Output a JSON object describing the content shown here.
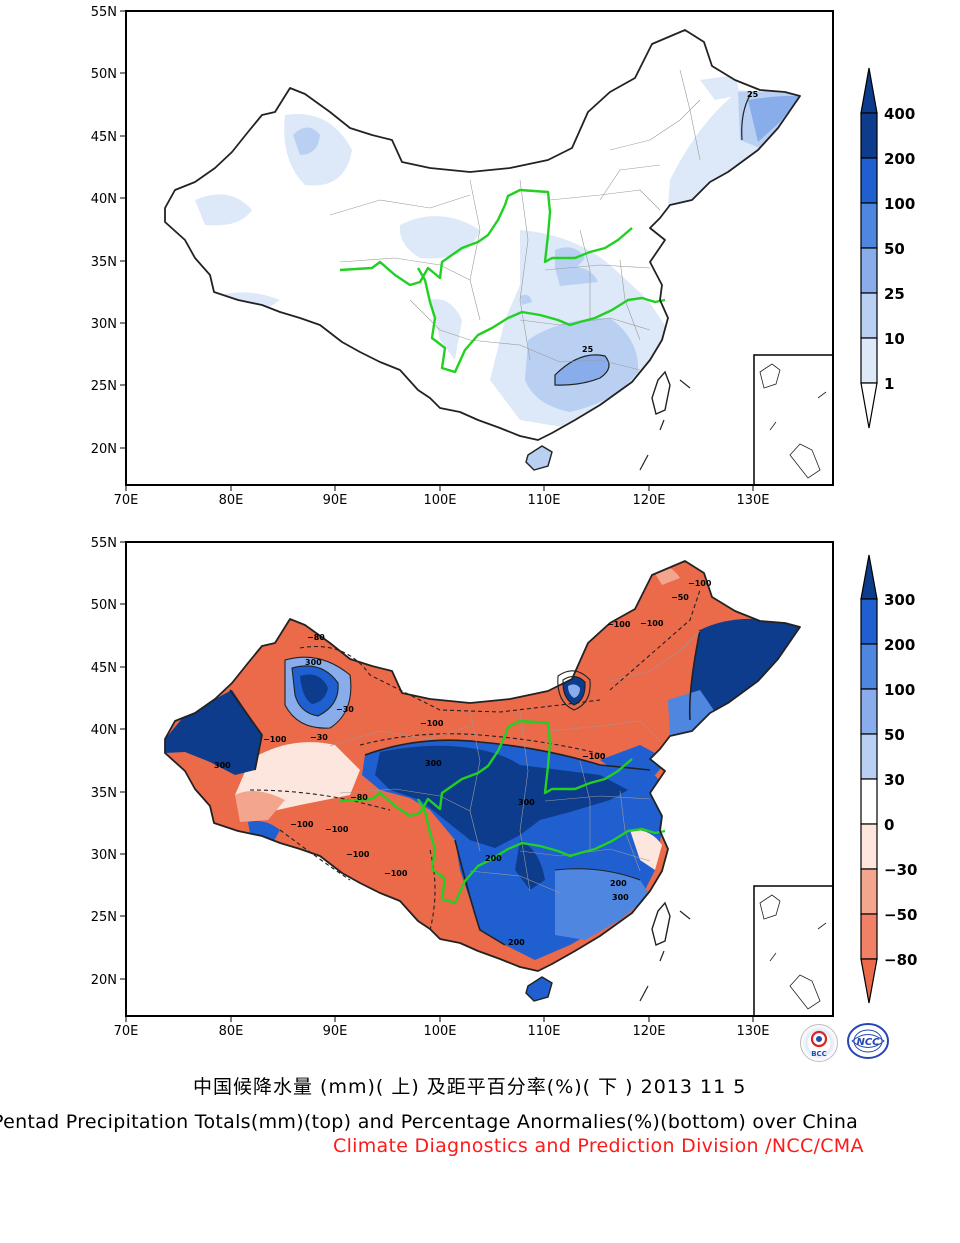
{
  "colors": {
    "blue_scale": [
      "#ffffff",
      "#dde8f8",
      "#b9d0f2",
      "#88adea",
      "#4f86e0",
      "#1f5fd0",
      "#0d3c8c"
    ],
    "red_scale": [
      "#ea6a4a",
      "#f4a58e",
      "#fde6de"
    ],
    "basin_line": "#22d022",
    "border": "#222222",
    "credit_text": "#ff1a1a"
  },
  "axes": {
    "lat_ticks": [
      "55N",
      "50N",
      "45N",
      "40N",
      "35N",
      "30N",
      "25N",
      "20N"
    ],
    "lon_ticks": [
      "70E",
      "80E",
      "90E",
      "100E",
      "110E",
      "120E",
      "130E"
    ]
  },
  "top_map": {
    "colorbar_labels": [
      "400",
      "200",
      "100",
      "50",
      "25",
      "10",
      "1"
    ],
    "contour_labels": [
      "25",
      "25"
    ]
  },
  "bottom_map": {
    "colorbar_labels": [
      "300",
      "200",
      "100",
      "50",
      "30",
      "0",
      "−30",
      "−50",
      "−80"
    ],
    "contour_labels": [
      "−100",
      "−100",
      "−100",
      "−50",
      "−80",
      "300",
      "300",
      "−30",
      "−30",
      "−100",
      "300",
      "−100",
      "300",
      "200",
      "−100",
      "−100",
      "−100",
      "−100",
      "200",
      "300",
      "200",
      "−80",
      "−100"
    ]
  },
  "logos": {
    "bcc": "BCC",
    "ncc": "NCC"
  },
  "captions": {
    "chinese": "中国候降水量 (mm)( 上) 及距平百分率(%)( 下 ) 2013 11 5",
    "english": "Pentad Precipitation Totals(mm)(top) and Percentage Anormalies(%)(bottom) over China",
    "credit": "Climate Diagnostics and Prediction Division /NCC/CMA"
  }
}
